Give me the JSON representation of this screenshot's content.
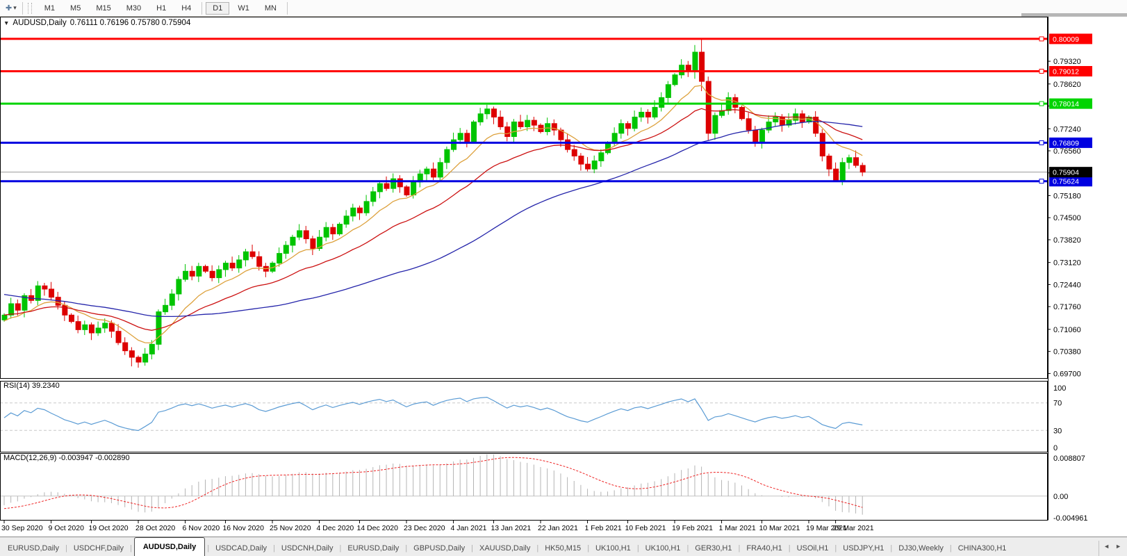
{
  "toolbar": {
    "cursor_icon": "✚",
    "dropdown_icon": "▾",
    "timeframes": [
      "M1",
      "M5",
      "M15",
      "M30",
      "H1",
      "H4",
      "D1",
      "W1",
      "MN"
    ],
    "active_timeframe": "D1"
  },
  "chart_header": {
    "collapse_icon": "▼",
    "symbol": "AUDUSD,Daily",
    "open": "0.76111",
    "high": "0.76196",
    "low": "0.75780",
    "close": "0.75904"
  },
  "indicators": {
    "rsi_label": "RSI(14) 39.2340",
    "macd_label": "MACD(12,26,9) -0.003947 -0.002890"
  },
  "price_axis": {
    "ticks": [
      "0.79320",
      "0.78620",
      "0.77940",
      "0.77240",
      "0.76560",
      "0.75880",
      "0.75180",
      "0.74500",
      "0.73820",
      "0.73120",
      "0.72440",
      "0.71760",
      "0.71060",
      "0.70380",
      "0.69700"
    ]
  },
  "levels": [
    {
      "label": "0.80009",
      "value": 0.80009,
      "color": "#ff0000"
    },
    {
      "label": "0.79012",
      "value": 0.79012,
      "color": "#ff0000"
    },
    {
      "label": "0.78014",
      "value": 0.78014,
      "color": "#00d400",
      "text": "#ffffff"
    },
    {
      "label": "0.76809",
      "value": 0.76809,
      "color": "#0000e0"
    },
    {
      "label": "0.75624",
      "value": 0.75624,
      "color": "#0000e0"
    }
  ],
  "current_price": {
    "label": "0.75904",
    "value": 0.75904,
    "badge_bg": "#000000",
    "line_color": "#9a9a9a"
  },
  "rsi_axis": [
    {
      "label": "100",
      "value": 100,
      "grid": false
    },
    {
      "label": "70",
      "value": 70,
      "grid": true
    },
    {
      "label": "30",
      "value": 30,
      "grid": true
    },
    {
      "label": "0",
      "value": 0,
      "grid": false
    }
  ],
  "macd_axis": [
    {
      "label": "0.008807",
      "value": 0.008807
    },
    {
      "label": "0.00",
      "value": 0
    },
    {
      "label": "-0.004961",
      "value": -0.004961
    }
  ],
  "dates": {
    "labels": [
      "30 Sep 2020",
      "9 Oct 2020",
      "19 Oct 2020",
      "28 Oct 2020",
      "6 Nov 2020",
      "16 Nov 2020",
      "25 Nov 2020",
      "4 Dec 2020",
      "14 Dec 2020",
      "23 Dec 2020",
      "4 Jan 2021",
      "13 Jan 2021",
      "22 Jan 2021",
      "1 Feb 2021",
      "10 Feb 2021",
      "19 Feb 2021",
      "1 Mar 2021",
      "10 Mar 2021",
      "19 Mar 2021",
      "29 Mar 2021"
    ],
    "indices": [
      0,
      7,
      13,
      20,
      27,
      33,
      40,
      47,
      53,
      60,
      67,
      73,
      80,
      87,
      93,
      100,
      107,
      113,
      120,
      124
    ]
  },
  "tabs": {
    "items": [
      "EURUSD,Daily",
      "USDCHF,Daily",
      "AUDUSD,Daily",
      "USDCAD,Daily",
      "USDCNH,Daily",
      "EURUSD,Daily",
      "GBPUSD,Daily",
      "XAUUSD,Daily",
      "HK50,M15",
      "UK100,H1",
      "UK100,H1",
      "GER30,H1",
      "FRA40,H1",
      "USOil,H1",
      "USDJPY,H1",
      "DJ30,Weekly",
      "CHINA300,H1"
    ],
    "active_index": 2,
    "separator": "|",
    "scroll_left": "◄",
    "scroll_right": "►"
  },
  "chart_data": {
    "type": "candlestick",
    "symbol": "AUDUSD",
    "timeframe": "Daily",
    "price_range": [
      0.6958,
      0.8065
    ],
    "colors": {
      "bull": "#00c400",
      "bear": "#dd0000",
      "ma_fast": "#dda13c",
      "ma_mid": "#cc1111",
      "ma_slow": "#2424aa",
      "rsi_line": "#5a9bd4",
      "macd_hist": "#b4b4b4",
      "macd_signal": "#ee2222"
    },
    "ma": [
      {
        "type": "ema",
        "period": 10,
        "color": "#dda13c"
      },
      {
        "type": "ema",
        "period": 24,
        "color": "#cc1111"
      },
      {
        "type": "sma",
        "period": 55,
        "color": "#2424aa"
      }
    ],
    "rsi_period": 14,
    "macd_params": [
      12,
      26,
      9
    ],
    "first_open": 0.7135,
    "base_wick": 0.0022,
    "pre_closes": [
      0.737,
      0.7355,
      0.734,
      0.736,
      0.7345,
      0.733,
      0.731,
      0.7325,
      0.73,
      0.7285,
      0.7295,
      0.731,
      0.729,
      0.727,
      0.7255,
      0.727,
      0.7285,
      0.7265,
      0.7245,
      0.723,
      0.725,
      0.7265,
      0.724,
      0.722,
      0.7205,
      0.722,
      0.7235,
      0.7215,
      0.7195,
      0.718,
      0.72,
      0.7215,
      0.719,
      0.717,
      0.7155,
      0.7175,
      0.719,
      0.717,
      0.715,
      0.7135,
      0.7155,
      0.717,
      0.715,
      0.713,
      0.7115,
      0.7135,
      0.715,
      0.713,
      0.711,
      0.7095,
      0.7115,
      0.713,
      0.711,
      0.7125,
      0.714
    ],
    "closes": [
      0.715,
      0.7185,
      0.7165,
      0.721,
      0.7195,
      0.724,
      0.723,
      0.7205,
      0.718,
      0.715,
      0.713,
      0.7105,
      0.712,
      0.7095,
      0.711,
      0.7125,
      0.71,
      0.7065,
      0.704,
      0.702,
      0.7005,
      0.703,
      0.706,
      0.716,
      0.718,
      0.7215,
      0.726,
      0.7285,
      0.727,
      0.73,
      0.7285,
      0.7265,
      0.729,
      0.731,
      0.7295,
      0.732,
      0.7345,
      0.733,
      0.73,
      0.7285,
      0.731,
      0.734,
      0.7365,
      0.739,
      0.741,
      0.7385,
      0.7355,
      0.739,
      0.742,
      0.74,
      0.743,
      0.7455,
      0.748,
      0.7465,
      0.75,
      0.753,
      0.7555,
      0.754,
      0.757,
      0.7545,
      0.752,
      0.756,
      0.7585,
      0.76,
      0.7575,
      0.762,
      0.766,
      0.769,
      0.771,
      0.7685,
      0.7745,
      0.777,
      0.7785,
      0.776,
      0.773,
      0.77,
      0.7745,
      0.773,
      0.775,
      0.7735,
      0.7715,
      0.774,
      0.772,
      0.769,
      0.766,
      0.764,
      0.7615,
      0.76,
      0.7625,
      0.765,
      0.768,
      0.771,
      0.774,
      0.7725,
      0.776,
      0.7775,
      0.776,
      0.779,
      0.782,
      0.786,
      0.789,
      0.792,
      0.79,
      0.796,
      0.787,
      0.771,
      0.7765,
      0.778,
      0.782,
      0.779,
      0.7755,
      0.772,
      0.7685,
      0.772,
      0.7745,
      0.776,
      0.7735,
      0.775,
      0.777,
      0.7745,
      0.776,
      0.771,
      0.764,
      0.76,
      0.7565,
      0.762,
      0.7635,
      0.76111,
      0.75904
    ],
    "special_candles": {
      "19": {
        "low": 0.6992
      },
      "20": {
        "low": 0.6988
      },
      "23": {
        "low": 0.7042
      },
      "103": {
        "high": 0.7982
      },
      "104": {
        "high": 0.8001,
        "low": 0.784
      },
      "105": {
        "low": 0.7688
      },
      "124": {
        "low": 0.756
      },
      "128": {
        "high": 0.76196,
        "low": 0.7578
      }
    }
  }
}
